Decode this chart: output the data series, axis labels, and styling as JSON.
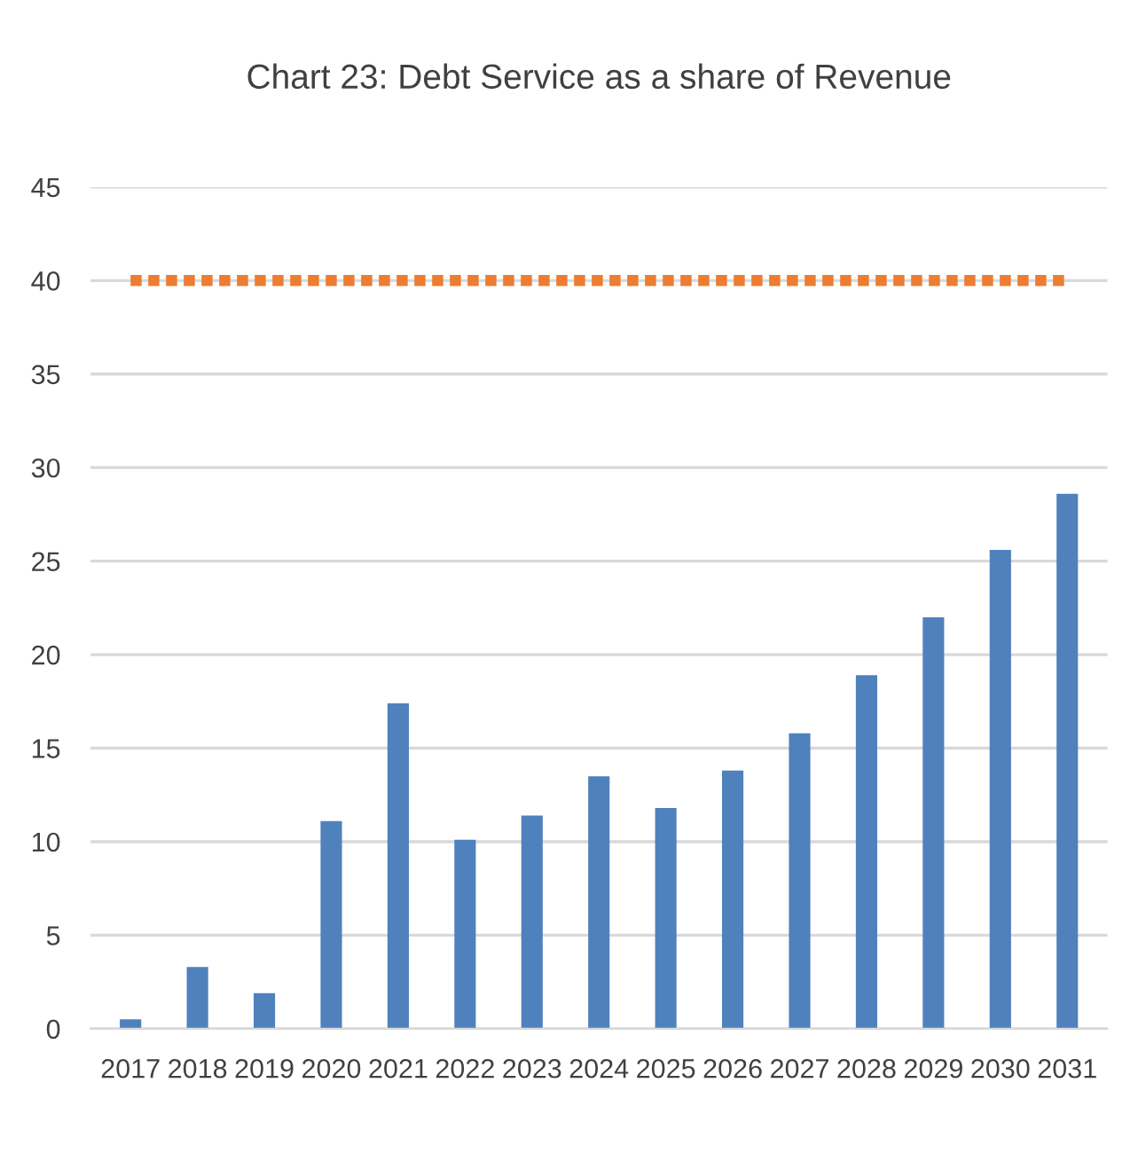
{
  "chart_data": {
    "type": "bar",
    "title": "Chart 23: Debt Service as a share of Revenue",
    "categories": [
      "2017",
      "2018",
      "2019",
      "2020",
      "2021",
      "2022",
      "2023",
      "2024",
      "2025",
      "2026",
      "2027",
      "2028",
      "2029",
      "2030",
      "2031"
    ],
    "series": [
      {
        "color": "#4f81bd",
        "values": [
          0.5,
          3.3,
          1.9,
          11.1,
          17.4,
          10.1,
          11.4,
          13.5,
          11.8,
          13.8,
          15.8,
          18.9,
          22.0,
          25.6,
          28.6
        ]
      },
      {
        "type": "line",
        "color": "#ed7d31",
        "line_style": "dotted",
        "values": [
          40,
          40,
          40,
          40,
          40,
          40,
          40,
          40,
          40,
          40,
          40,
          40,
          40,
          40,
          40
        ]
      }
    ],
    "ylim": [
      0,
      45
    ],
    "yticks": [
      0,
      5,
      10,
      15,
      20,
      25,
      30,
      35,
      40,
      45
    ],
    "grid": "y",
    "legend": false
  }
}
